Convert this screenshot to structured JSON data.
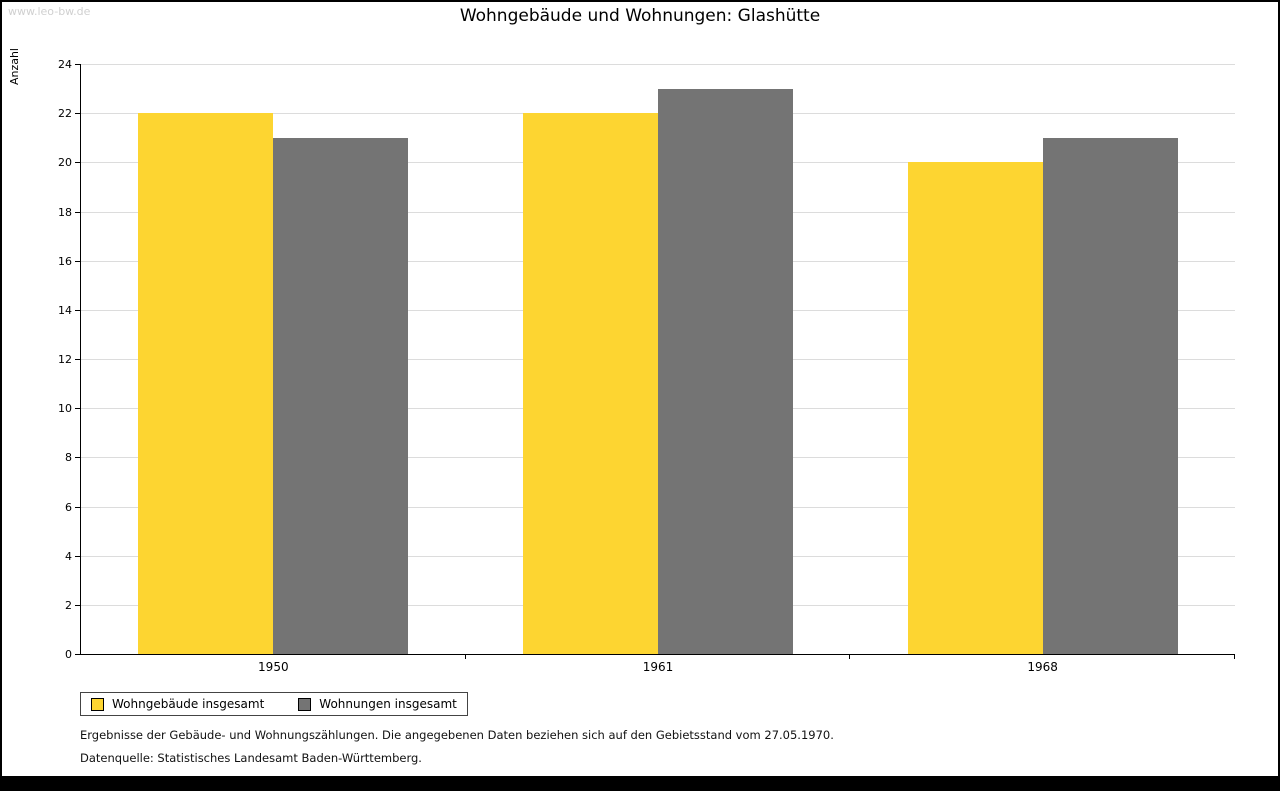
{
  "watermark": "www.leo-bw.de",
  "title": "Wohngebäude und Wohnungen: Glashütte",
  "chart_data": {
    "type": "bar",
    "title": "Wohngebäude und Wohnungen: Glashütte",
    "categories": [
      "1950",
      "1961",
      "1968"
    ],
    "series": [
      {
        "name": "Wohngebäude insgesamt",
        "color": "#fdd531",
        "values": [
          22,
          22,
          20
        ]
      },
      {
        "name": "Wohnungen insgesamt",
        "color": "#747474",
        "values": [
          21,
          23,
          21
        ]
      }
    ],
    "xlabel": "",
    "ylabel": "Anzahl",
    "ylim": [
      0,
      24
    ],
    "ytick_step": 2,
    "grid": true,
    "legend_position": "bottom-left"
  },
  "footnotes": [
    "Ergebnisse der Gebäude- und Wohnungszählungen. Die angegebenen Daten beziehen sich auf den Gebietsstand vom 27.05.1970.",
    "Datenquelle: Statistisches Landesamt Baden-Württemberg."
  ]
}
